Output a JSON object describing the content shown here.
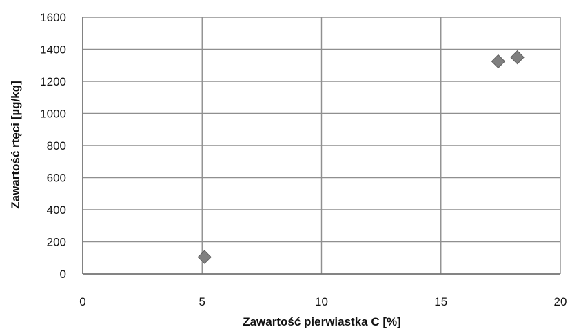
{
  "chart_data": {
    "type": "scatter",
    "title": "",
    "xlabel": "Zawartość pierwiastka C [%]",
    "ylabel": "Zawartość rtęci [µg/kg]",
    "xlim": [
      0,
      20
    ],
    "ylim": [
      0,
      1600
    ],
    "x_ticks": [
      0,
      5,
      10,
      15,
      20
    ],
    "y_ticks": [
      0,
      200,
      400,
      600,
      800,
      1000,
      1200,
      1400,
      1600
    ],
    "x_tick_labels": [
      "0",
      "5",
      "10",
      "15",
      "20"
    ],
    "y_tick_labels": [
      "0",
      "200",
      "400",
      "600",
      "800",
      "1000",
      "1200",
      "1400",
      "1600"
    ],
    "grid": true,
    "legend": false,
    "marker": "diamond",
    "marker_color": "#808080",
    "series": [
      {
        "x": [
          5.1,
          17.4,
          18.2
        ],
        "y": [
          105,
          1325,
          1350
        ]
      }
    ]
  }
}
